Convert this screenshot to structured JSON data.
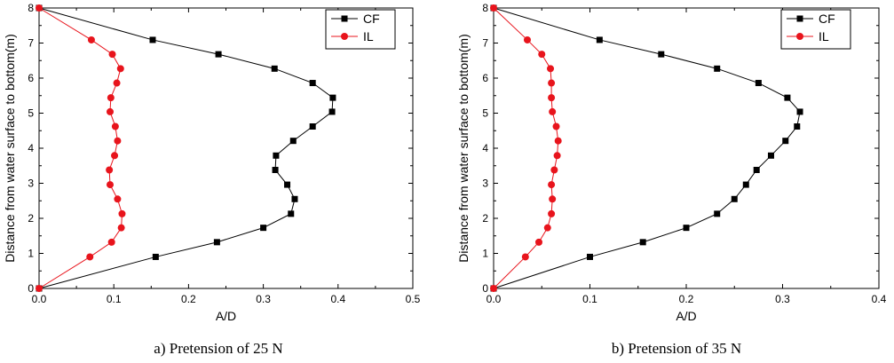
{
  "chart_data": [
    {
      "type": "line",
      "caption": "a) Pretension of 25 N",
      "xlabel": "A/D",
      "ylabel": "Distance from water surface to bottom(m)",
      "xlim": [
        0.0,
        0.5
      ],
      "ylim": [
        0,
        8
      ],
      "xticks": [
        "0.0",
        "0.1",
        "0.2",
        "0.3",
        "0.4",
        "0.5"
      ],
      "yticks": [
        "0",
        "1",
        "2",
        "3",
        "4",
        "5",
        "6",
        "7",
        "8"
      ],
      "legend_position": "top-right",
      "series": [
        {
          "name": "CF",
          "color": "#000000",
          "marker": "square",
          "x": [
            0.0,
            0.156,
            0.238,
            0.3,
            0.337,
            0.342,
            0.332,
            0.316,
            0.317,
            0.34,
            0.366,
            0.392,
            0.393,
            0.366,
            0.315,
            0.24,
            0.152,
            0.0
          ],
          "y": [
            0.0,
            0.9,
            1.32,
            1.73,
            2.13,
            2.55,
            2.96,
            3.38,
            3.79,
            4.21,
            4.62,
            5.04,
            5.44,
            5.86,
            6.27,
            6.68,
            7.09,
            8.0
          ]
        },
        {
          "name": "IL",
          "color": "#e8141c",
          "marker": "circle",
          "x": [
            0.0,
            0.068,
            0.097,
            0.11,
            0.111,
            0.105,
            0.095,
            0.094,
            0.101,
            0.105,
            0.102,
            0.095,
            0.096,
            0.104,
            0.109,
            0.098,
            0.07,
            0.0
          ],
          "y": [
            0.0,
            0.9,
            1.32,
            1.73,
            2.13,
            2.55,
            2.96,
            3.38,
            3.79,
            4.21,
            4.62,
            5.04,
            5.44,
            5.86,
            6.27,
            6.68,
            7.09,
            8.0
          ]
        }
      ]
    },
    {
      "type": "line",
      "caption": "b) Pretension of 35 N",
      "xlabel": "A/D",
      "ylabel": "Distance from water surface to bottom(m)",
      "xlim": [
        0.0,
        0.4
      ],
      "ylim": [
        0,
        8
      ],
      "xticks": [
        "0.0",
        "0.1",
        "0.2",
        "0.3",
        "0.4"
      ],
      "yticks": [
        "0",
        "1",
        "2",
        "3",
        "4",
        "5",
        "6",
        "7",
        "8"
      ],
      "legend_position": "top-right",
      "series": [
        {
          "name": "CF",
          "color": "#000000",
          "marker": "square",
          "x": [
            0.0,
            0.1,
            0.155,
            0.2,
            0.232,
            0.25,
            0.262,
            0.273,
            0.288,
            0.303,
            0.315,
            0.318,
            0.305,
            0.275,
            0.232,
            0.174,
            0.11,
            0.0
          ],
          "y": [
            0.0,
            0.9,
            1.32,
            1.73,
            2.13,
            2.55,
            2.96,
            3.38,
            3.79,
            4.21,
            4.62,
            5.04,
            5.44,
            5.86,
            6.27,
            6.68,
            7.09,
            8.0
          ]
        },
        {
          "name": "IL",
          "color": "#e8141c",
          "marker": "circle",
          "x": [
            0.0,
            0.033,
            0.047,
            0.056,
            0.06,
            0.061,
            0.06,
            0.063,
            0.066,
            0.067,
            0.065,
            0.061,
            0.06,
            0.06,
            0.059,
            0.05,
            0.035,
            0.0
          ],
          "y": [
            0.0,
            0.9,
            1.32,
            1.73,
            2.13,
            2.55,
            2.96,
            3.38,
            3.79,
            4.21,
            4.62,
            5.04,
            5.44,
            5.86,
            6.27,
            6.68,
            7.09,
            8.0
          ]
        }
      ]
    }
  ]
}
